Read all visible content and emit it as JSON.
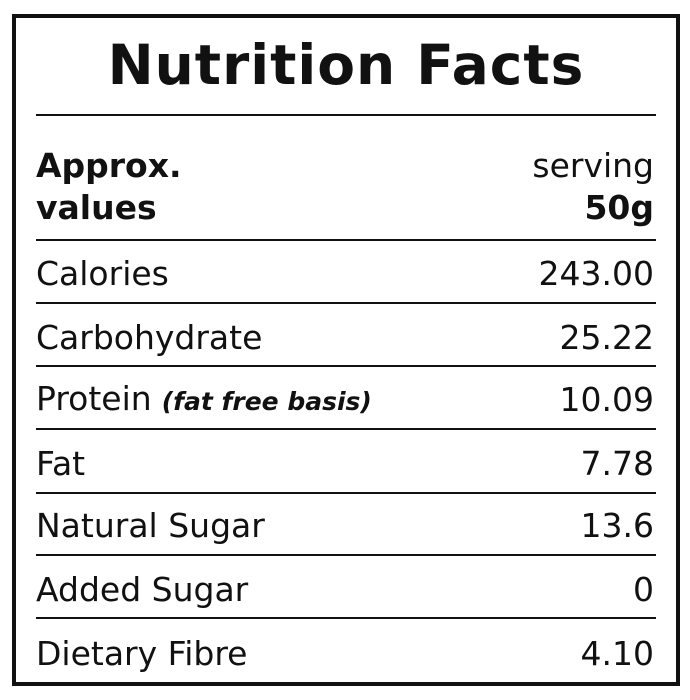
{
  "title": "Nutrition Facts",
  "header": {
    "left_line1": "Approx.",
    "left_line2": "values",
    "right_line1": "serving",
    "right_line2": "50g"
  },
  "rows": [
    {
      "label": "Calories",
      "note": "",
      "value": "243.00"
    },
    {
      "label": "Carbohydrate",
      "note": "",
      "value": "25.22"
    },
    {
      "label": "Protein",
      "note": "(fat free basis)",
      "value": "10.09"
    },
    {
      "label": "Fat",
      "note": "",
      "value": "7.78"
    },
    {
      "label": "Natural Sugar",
      "note": "",
      "value": "13.6"
    },
    {
      "label": "Added Sugar",
      "note": "",
      "value": "0"
    },
    {
      "label": "Dietary Fibre",
      "note": "",
      "value": "4.10"
    }
  ]
}
